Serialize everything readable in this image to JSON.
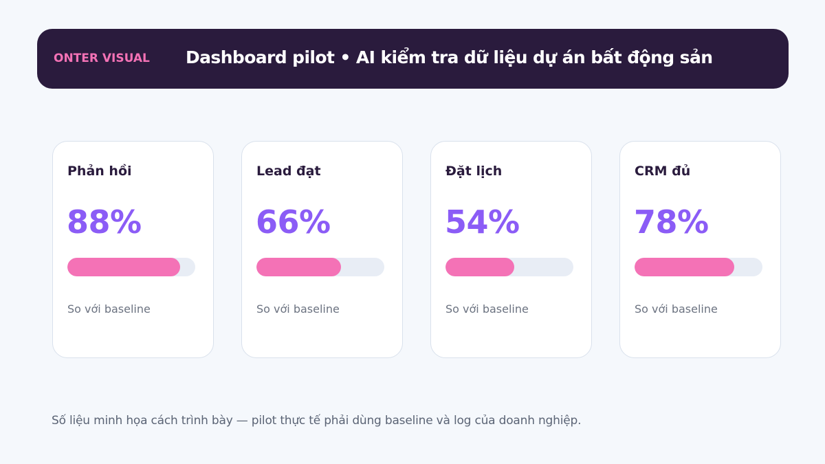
{
  "header": {
    "brand": "ONTER VISUAL",
    "title": "Dashboard pilot • AI kiểm tra dữ liệu dự án bất động sản"
  },
  "cards": [
    {
      "label": "Phản hồi",
      "value": "88%",
      "progress": 0.88,
      "note": "So với baseline"
    },
    {
      "label": "Lead đạt",
      "value": "66%",
      "progress": 0.66,
      "note": "So với baseline"
    },
    {
      "label": "Đặt lịch",
      "value": "54%",
      "progress": 0.54,
      "note": "So với baseline"
    },
    {
      "label": "CRM đủ",
      "value": "78%",
      "progress": 0.78,
      "note": "So với baseline"
    }
  ],
  "footnote": "Số liệu minh họa cách trình bày — pilot thực tế phải dùng baseline và log của doanh nghiệp.",
  "colors": {
    "header_bg": "#2a1b3d",
    "brand": "#f472b6",
    "value": "#8b5cf6",
    "bar_fill": "#f472b6",
    "bar_track": "#e8edf5"
  }
}
